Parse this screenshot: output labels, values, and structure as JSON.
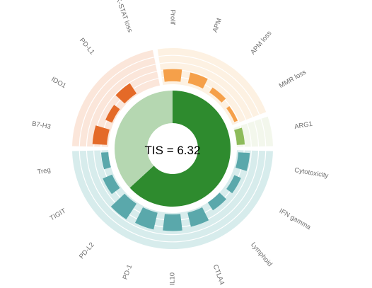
{
  "chart_data": {
    "type": "pie",
    "center_label": "TIS = 6.32",
    "donut": [
      {
        "name": "TIS",
        "value": 6.32,
        "color": "#2e8b2e"
      },
      {
        "name": "remainder",
        "value": 3.68,
        "color": "#b5d7b1"
      }
    ],
    "bar_range": [
      0,
      5
    ],
    "groups": [
      {
        "key": "tumor",
        "base": "#e46a28",
        "bg": "#fbe6da"
      },
      {
        "key": "apm",
        "base": "#f5a04a",
        "bg": "#fdf1e2"
      },
      {
        "key": "arg",
        "base": "#8dbb5a",
        "bg": "#f3f7ec"
      },
      {
        "key": "immune",
        "base": "#5aa8ab",
        "bg": "#d7ecec"
      }
    ],
    "categories": [
      {
        "label": "Prolif",
        "group": "apm",
        "value": 1.7,
        "start": 0.4
      },
      {
        "label": "APM",
        "group": "apm",
        "value": 1.5,
        "start": 0.4
      },
      {
        "label": "APM loss",
        "group": "apm",
        "value": 0.8,
        "start": 0.4
      },
      {
        "label": "MMR loss",
        "group": "apm",
        "value": 0.5,
        "start": 0.4
      },
      {
        "label": "ARG1",
        "group": "arg",
        "value": 1.1,
        "start": 0.0
      },
      {
        "label": "Cytotoxicity",
        "group": "immune",
        "value": 1.6,
        "start": 0.2
      },
      {
        "label": "IFN gamma",
        "group": "immune",
        "value": 1.0,
        "start": 0.4
      },
      {
        "label": "Lymphoid",
        "group": "immune",
        "value": 1.3,
        "start": 0.0
      },
      {
        "label": "CTLA4",
        "group": "immune",
        "value": 2.0,
        "start": 0.2
      },
      {
        "label": "IL10",
        "group": "immune",
        "value": 2.3,
        "start": 0.2
      },
      {
        "label": "PD-1",
        "group": "immune",
        "value": 2.4,
        "start": 0.2
      },
      {
        "label": "PD-L2",
        "group": "immune",
        "value": 2.6,
        "start": 0.2
      },
      {
        "label": "TIGIT",
        "group": "immune",
        "value": 1.4,
        "start": 0.2
      },
      {
        "label": "Treg",
        "group": "immune",
        "value": 1.0,
        "start": 0.0
      },
      {
        "label": "B7-H3",
        "group": "tumor",
        "value": 2.0,
        "start": 0.2
      },
      {
        "label": "IDO1",
        "group": "tumor",
        "value": 1.0,
        "start": 0.2
      },
      {
        "label": "PD-L1",
        "group": "tumor",
        "value": 1.7,
        "start": 0.2
      },
      {
        "label": "JAK-STAT loss",
        "group": "tumor",
        "value": 0.0,
        "start": 0.2
      }
    ]
  }
}
